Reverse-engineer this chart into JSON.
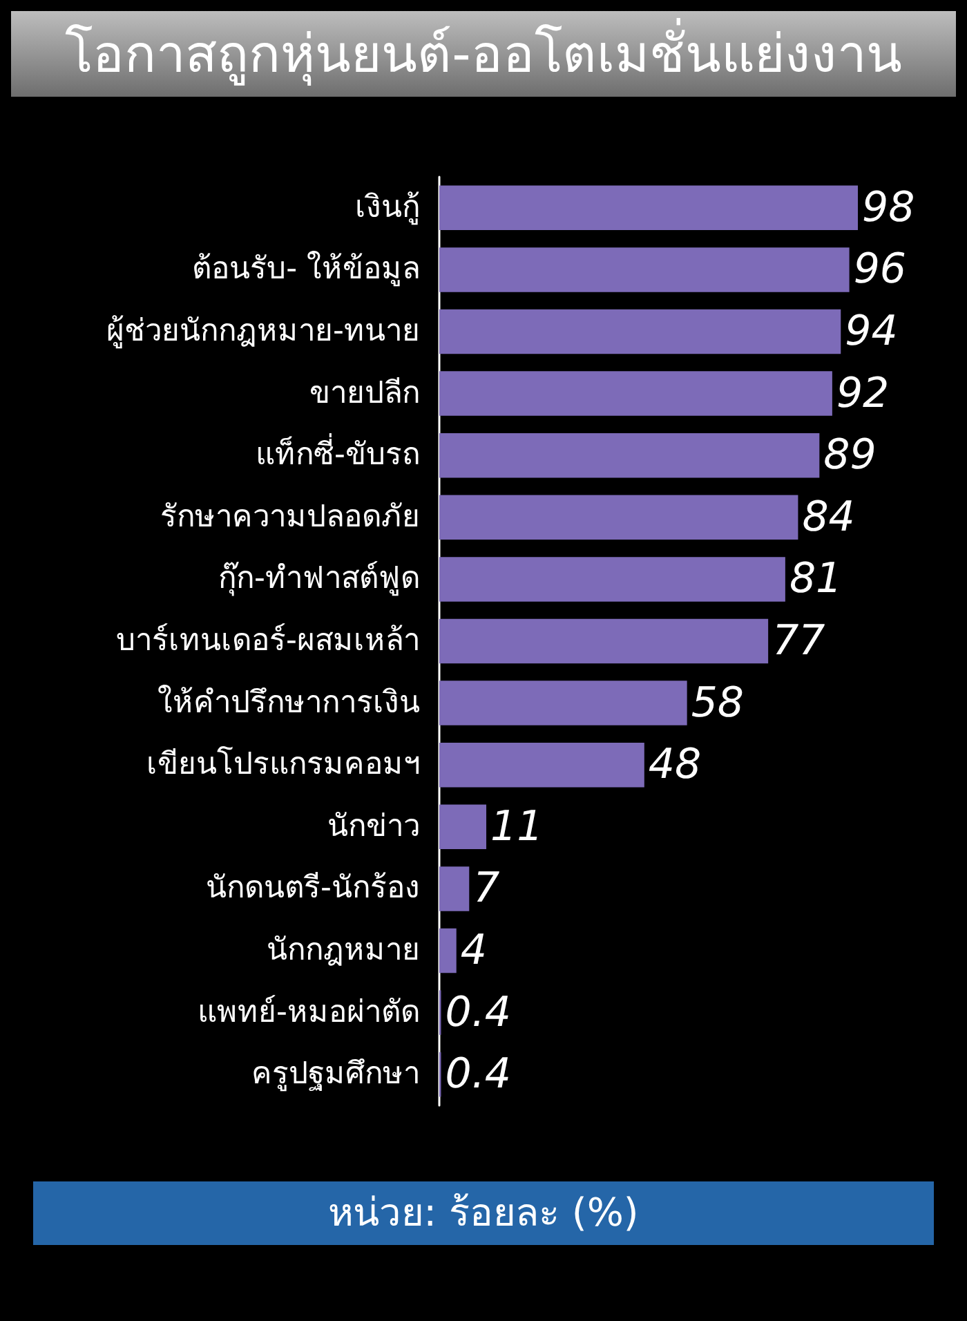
{
  "chart_data": {
    "type": "bar",
    "orientation": "horizontal",
    "title": "โอกาสถูกหุ่นยนต์-ออโตเมชั่นแย่งงาน",
    "categories": [
      "เงินกู้",
      "ต้อนรับ- ให้ข้อมูล",
      "ผู้ช่วยนักกฎหมาย-ทนาย",
      "ขายปลีก",
      "แท็กซี่-ขับรถ",
      "รักษาความปลอดภัย",
      "กุ๊ก-ทำฟาสต์ฟูด",
      "บาร์เทนเดอร์-ผสมเหล้า",
      "ให้คำปรึกษาการเงิน",
      "เขียนโปรแกรมคอมฯ",
      "นักข่าว",
      "นักดนตรี-นักร้อง",
      "นักกฎหมาย",
      "แพทย์-หมอผ่าตัด",
      "ครูปฐมศึกษา"
    ],
    "values": [
      98,
      96,
      94,
      92,
      89,
      84,
      81,
      77,
      58,
      48,
      11,
      7,
      4,
      0.4,
      0.4
    ],
    "color": "#7d6bb8",
    "data_labels": true,
    "tick_labels": "y",
    "annotations": [
      "หน่วย: ร้อยละ (%)"
    ]
  }
}
